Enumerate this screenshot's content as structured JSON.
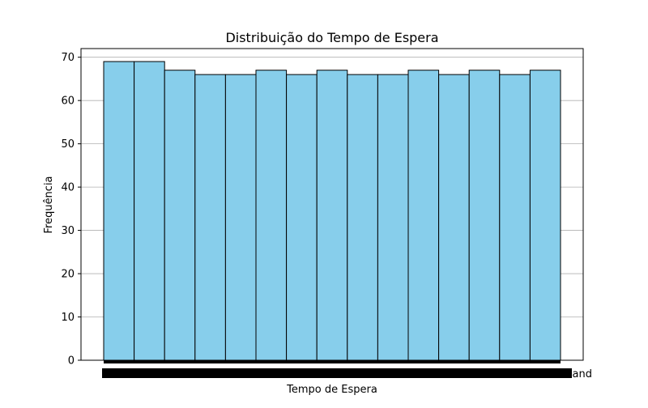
{
  "chart_data": {
    "type": "bar",
    "title": "Distribuição do Tempo de Espera",
    "xlabel": "Tempo de Espera",
    "ylabel": "Frequência",
    "values": [
      69,
      69,
      67,
      66,
      66,
      67,
      66,
      67,
      66,
      66,
      67,
      66,
      67,
      66,
      67
    ],
    "ylim": [
      0,
      72
    ],
    "yticks": [
      0,
      10,
      20,
      30,
      40,
      50,
      60,
      70
    ],
    "grid": "y",
    "legend": "none",
    "xtick_overflow_text": "and",
    "colors": {
      "bar_fill": "#87ceeb",
      "bar_edge": "#000000",
      "grid": "#b0b0b0",
      "axes": "#000000"
    }
  }
}
